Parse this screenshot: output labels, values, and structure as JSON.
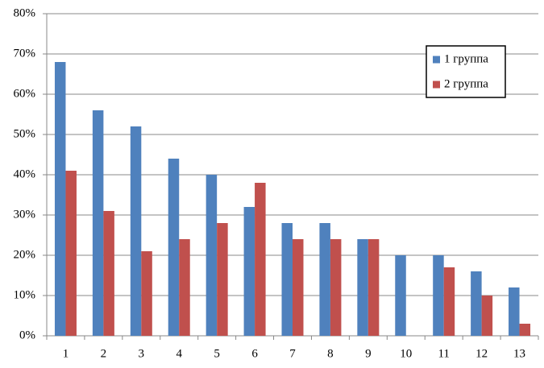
{
  "chart_data": {
    "type": "bar",
    "categories": [
      "1",
      "2",
      "3",
      "4",
      "5",
      "6",
      "7",
      "8",
      "9",
      "10",
      "11",
      "12",
      "13"
    ],
    "series": [
      {
        "name": "1 группа",
        "color": "#4f81bd",
        "values": [
          68,
          56,
          52,
          44,
          40,
          32,
          28,
          28,
          24,
          20,
          20,
          16,
          12
        ]
      },
      {
        "name": "2 группа",
        "color": "#c0504d",
        "values": [
          41,
          31,
          21,
          24,
          28,
          38,
          24,
          24,
          24,
          0,
          17,
          10,
          3
        ]
      }
    ],
    "ylim": [
      0,
      80
    ],
    "yticks": [
      {
        "value": 0,
        "label": "0%"
      },
      {
        "value": 10,
        "label": "10%"
      },
      {
        "value": 20,
        "label": "20%"
      },
      {
        "value": 30,
        "label": "30%"
      },
      {
        "value": 40,
        "label": "40%"
      },
      {
        "value": 50,
        "label": "50%"
      },
      {
        "value": 60,
        "label": "60%"
      },
      {
        "value": 70,
        "label": "70%"
      },
      {
        "value": 80,
        "label": "80%"
      }
    ],
    "grid": true,
    "legend": "upper-right"
  }
}
